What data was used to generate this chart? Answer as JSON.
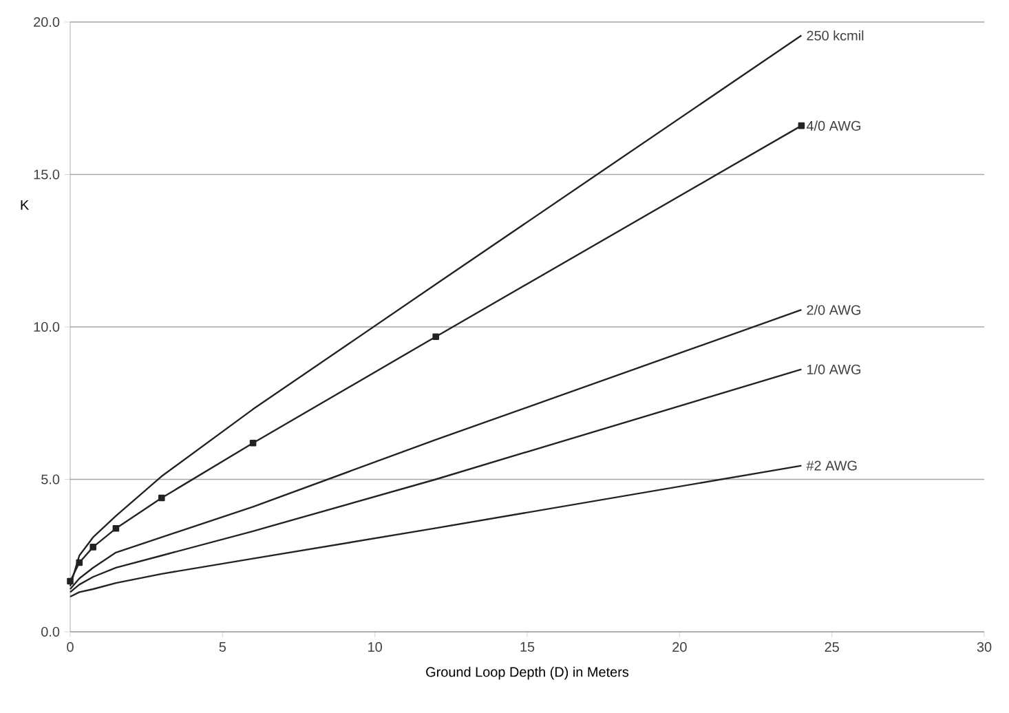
{
  "chart_data": {
    "type": "line",
    "xlabel": "Ground Loop Depth (D) in Meters",
    "ylabel": "K",
    "x": [
      0,
      0.3,
      0.75,
      1.5,
      3,
      6,
      12,
      24
    ],
    "series": [
      {
        "name": "250 kcmil",
        "color": "#222222",
        "values": [
          1.5,
          2.5,
          3.1,
          3.8,
          5.1,
          7.3,
          11.4,
          19.56
        ]
      },
      {
        "name": "4/0 AWG",
        "color": "#222222",
        "marker": "square",
        "values": [
          1.66,
          2.27,
          2.78,
          3.39,
          4.39,
          6.19,
          9.68,
          16.6
        ]
      },
      {
        "name": "2/0 AWG",
        "color": "#222222",
        "values": [
          1.4,
          1.75,
          2.1,
          2.6,
          3.1,
          4.1,
          6.3,
          10.56
        ]
      },
      {
        "name": "1/0 AWG",
        "color": "#222222",
        "values": [
          1.3,
          1.55,
          1.8,
          2.1,
          2.5,
          3.3,
          5.0,
          8.61
        ]
      },
      {
        "name": "#2 AWG",
        "color": "#222222",
        "values": [
          1.15,
          1.3,
          1.4,
          1.6,
          1.9,
          2.4,
          3.4,
          5.45
        ]
      }
    ],
    "xlim": [
      0,
      30
    ],
    "xticks": [
      0,
      5,
      10,
      15,
      20,
      25,
      30
    ],
    "ylim": [
      0,
      20
    ],
    "yticks": [
      {
        "value": 0,
        "label": "0.0"
      },
      {
        "value": 5,
        "label": "5.0"
      },
      {
        "value": 10,
        "label": "10.0"
      },
      {
        "value": 15,
        "label": "15.0"
      },
      {
        "value": 20,
        "label": "20.0"
      }
    ],
    "grid": "y",
    "marker": "none",
    "line_style": "solid",
    "legend": false
  }
}
